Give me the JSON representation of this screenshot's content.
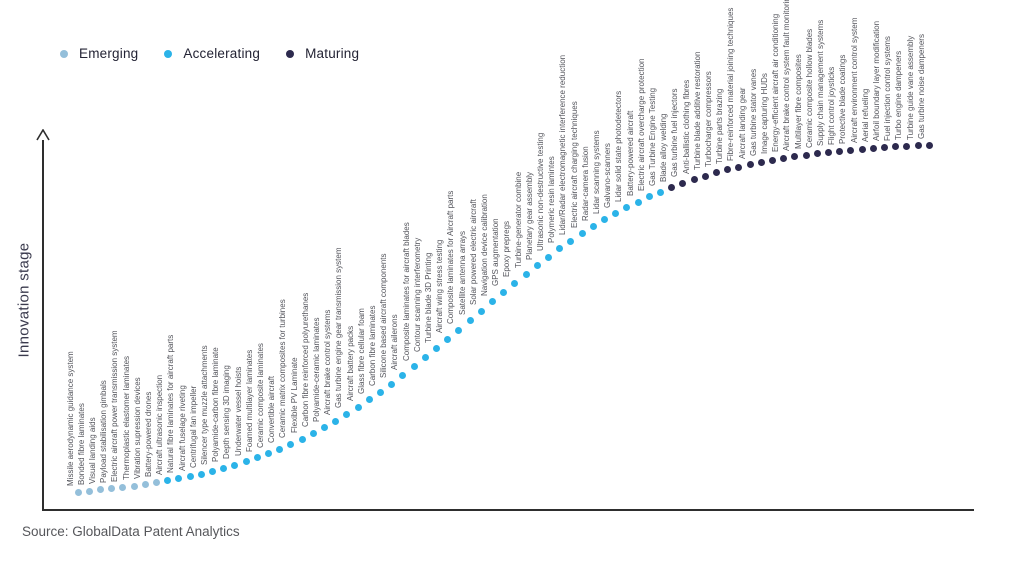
{
  "legend": {
    "items": [
      {
        "label": "Emerging",
        "color": "#94bfda"
      },
      {
        "label": "Accelerating",
        "color": "#2bb3e8"
      },
      {
        "label": "Maturing",
        "color": "#2d2a4e"
      }
    ]
  },
  "source": "Source: GlobalData Patent Analytics",
  "chart_data": {
    "type": "scatter",
    "title": "",
    "xlabel": "",
    "ylabel": "Innovation stage",
    "x_meaning": "technologies ordered by innovation maturity (S-curve rank)",
    "y_meaning": "innovation stage (unlabeled axis, S-curve position)",
    "legend_position": "top-left",
    "grid": false,
    "stages": [
      "Emerging",
      "Accelerating",
      "Maturing"
    ],
    "stage_colors": {
      "Emerging": "#94bfda",
      "Accelerating": "#2bb3e8",
      "Maturing": "#2d2a4e"
    },
    "items": [
      {
        "label": "Missile aerodynamic guidance system",
        "stage": "Emerging"
      },
      {
        "label": "Bonded fibre laminates",
        "stage": "Emerging"
      },
      {
        "label": "Visual landing aids",
        "stage": "Emerging"
      },
      {
        "label": "Payload stabilisation gimbals",
        "stage": "Emerging"
      },
      {
        "label": "Electric aircraft power transmission system",
        "stage": "Emerging"
      },
      {
        "label": "Thermoplastic elastomer laminates",
        "stage": "Emerging"
      },
      {
        "label": "Vibration supression devices",
        "stage": "Emerging"
      },
      {
        "label": "Battery-powered drones",
        "stage": "Emerging"
      },
      {
        "label": "Aircraft ultrasonic inspection",
        "stage": "Accelerating"
      },
      {
        "label": "Natural fibre laminates for aircraft parts",
        "stage": "Accelerating"
      },
      {
        "label": "Aircraft fuselage riveting",
        "stage": "Accelerating"
      },
      {
        "label": "Centrifugal fan impeller",
        "stage": "Accelerating"
      },
      {
        "label": "Silencer type muzzle attachments",
        "stage": "Accelerating"
      },
      {
        "label": "Polyamide-carbon fibre laminate",
        "stage": "Accelerating"
      },
      {
        "label": "Depth sensing 3D imaging",
        "stage": "Accelerating"
      },
      {
        "label": "Underwater vessel hoists",
        "stage": "Accelerating"
      },
      {
        "label": "Foamed multilayer laminates",
        "stage": "Accelerating"
      },
      {
        "label": "Ceramic composite laminates",
        "stage": "Accelerating"
      },
      {
        "label": "Convertible aircraft",
        "stage": "Accelerating"
      },
      {
        "label": "Ceramic matrix composites for turbines",
        "stage": "Accelerating"
      },
      {
        "label": "Flexible PV Laminate",
        "stage": "Accelerating"
      },
      {
        "label": "Carbon fibre reinforced polyurethanes",
        "stage": "Accelerating"
      },
      {
        "label": "Polyamide-ceramic laminates",
        "stage": "Accelerating"
      },
      {
        "label": "Aircraft brake control systems",
        "stage": "Accelerating"
      },
      {
        "label": "Gas turbine engine gear transmission system",
        "stage": "Accelerating"
      },
      {
        "label": "Aircraft battery packs",
        "stage": "Accelerating"
      },
      {
        "label": "Glass fibre cellular foam",
        "stage": "Accelerating"
      },
      {
        "label": "Carbon fibre laminates",
        "stage": "Accelerating"
      },
      {
        "label": "Silicone based aircraft components",
        "stage": "Accelerating"
      },
      {
        "label": "Aircraft ailerons",
        "stage": "Accelerating"
      },
      {
        "label": "Composite laminates for aircraft blades",
        "stage": "Accelerating"
      },
      {
        "label": "Contour scanning interferometry",
        "stage": "Accelerating"
      },
      {
        "label": "Turbine blade 3D Printing",
        "stage": "Accelerating"
      },
      {
        "label": "Aircraft wing stress testing",
        "stage": "Accelerating"
      },
      {
        "label": "Composite laminates for Aircraft parts",
        "stage": "Accelerating"
      },
      {
        "label": "Satellite antenna arrays",
        "stage": "Accelerating"
      },
      {
        "label": "Solar powered electric aircraft",
        "stage": "Accelerating"
      },
      {
        "label": "Navigation device calibration",
        "stage": "Accelerating"
      },
      {
        "label": "GPS augmentation",
        "stage": "Accelerating"
      },
      {
        "label": "Epoxy prepregs",
        "stage": "Accelerating"
      },
      {
        "label": "Turbine-generator combine",
        "stage": "Accelerating"
      },
      {
        "label": "Planetary gear assembly",
        "stage": "Accelerating"
      },
      {
        "label": "Ultrasonic non-destructive testing",
        "stage": "Accelerating"
      },
      {
        "label": "Polymeric resin lamintes",
        "stage": "Accelerating"
      },
      {
        "label": "Lidar/Radar electromagnetic interference reduction",
        "stage": "Accelerating"
      },
      {
        "label": "Electric aircraft charging techniques",
        "stage": "Accelerating"
      },
      {
        "label": "Radar-camera fusion",
        "stage": "Accelerating"
      },
      {
        "label": "Lidar scanning systems",
        "stage": "Accelerating"
      },
      {
        "label": "Galvano-scanners",
        "stage": "Accelerating"
      },
      {
        "label": "Lidar solid state photodetectors",
        "stage": "Accelerating"
      },
      {
        "label": "Battery-powered aircraft",
        "stage": "Accelerating"
      },
      {
        "label": "Electric aircraft overcharge protection",
        "stage": "Accelerating"
      },
      {
        "label": "Gas Turbine Engine Testing",
        "stage": "Accelerating"
      },
      {
        "label": "Blade alloy welding",
        "stage": "Maturing"
      },
      {
        "label": "Gas turbine fuel injectors",
        "stage": "Maturing"
      },
      {
        "label": "Anti-ballistic clothing fibres",
        "stage": "Maturing"
      },
      {
        "label": "Turbine blade additive restoration",
        "stage": "Maturing"
      },
      {
        "label": "Turbocharger compressors",
        "stage": "Maturing"
      },
      {
        "label": "Turbine parts brazing",
        "stage": "Maturing"
      },
      {
        "label": "Fibre-reinforced material joining techniques",
        "stage": "Maturing"
      },
      {
        "label": "Aircraft landing gear",
        "stage": "Maturing"
      },
      {
        "label": "Gas turbine stator vanes",
        "stage": "Maturing"
      },
      {
        "label": "Image capturing HUDs",
        "stage": "Maturing"
      },
      {
        "label": "Energy-efficient aircraft air conditioning",
        "stage": "Maturing"
      },
      {
        "label": "Aircraft brake control system fault monitoring",
        "stage": "Maturing"
      },
      {
        "label": "Multilayer fibre composites",
        "stage": "Maturing"
      },
      {
        "label": "Ceramic composite hollow blades",
        "stage": "Maturing"
      },
      {
        "label": "Supply chain management systems",
        "stage": "Maturing"
      },
      {
        "label": "Flight control joysticks",
        "stage": "Maturing"
      },
      {
        "label": "Protective blade coatings",
        "stage": "Maturing"
      },
      {
        "label": "Aircraft environment control system",
        "stage": "Maturing"
      },
      {
        "label": "Aerial refueling",
        "stage": "Maturing"
      },
      {
        "label": "Airfoil boundary layer modification",
        "stage": "Maturing"
      },
      {
        "label": "Fuel injection control systems",
        "stage": "Maturing"
      },
      {
        "label": "Turbo engine dampeners",
        "stage": "Maturing"
      },
      {
        "label": "Turbine guide vane assembly",
        "stage": "Maturing"
      },
      {
        "label": "Gas turbine noise dampeners",
        "stage": "Maturing"
      }
    ]
  }
}
